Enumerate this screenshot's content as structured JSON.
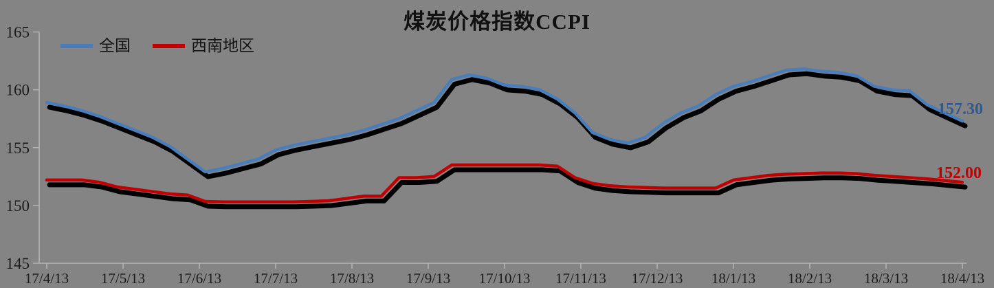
{
  "colors": {
    "background": "#848484",
    "axis": "#b5b5b5",
    "text": "#1c1c1c"
  },
  "chart_data": {
    "type": "line",
    "title": "煤炭价格指数CCPI",
    "xlabel": "",
    "ylabel": "",
    "ylim": [
      145,
      165
    ],
    "yticks": [
      165,
      160,
      155,
      150,
      145
    ],
    "grid": false,
    "legend_position": "top-left",
    "categories": [
      "17/4/13",
      "17/5/13",
      "17/6/13",
      "17/7/13",
      "17/8/13",
      "17/9/13",
      "17/10/13",
      "17/11/13",
      "17/12/13",
      "18/1/13",
      "18/2/13",
      "18/3/13",
      "18/4/13"
    ],
    "x_note": "weekly data points, monthly tick labels",
    "series": [
      {
        "name": "全国",
        "color": "#4A7EBB",
        "values": [
          158.9,
          158.6,
          158.2,
          157.7,
          157.1,
          156.5,
          155.9,
          155.1,
          154.0,
          152.9,
          153.2,
          153.6,
          154.0,
          154.8,
          155.2,
          155.5,
          155.8,
          156.1,
          156.5,
          157.0,
          157.5,
          158.2,
          158.9,
          160.9,
          161.3,
          161.0,
          160.4,
          160.3,
          160.0,
          159.2,
          158.0,
          156.3,
          155.7,
          155.4,
          155.9,
          157.1,
          158.0,
          158.6,
          159.6,
          160.3,
          160.7,
          161.2,
          161.7,
          161.8,
          161.6,
          161.5,
          161.2,
          160.3,
          160.0,
          159.9,
          158.7,
          158.0,
          157.3
        ]
      },
      {
        "name": "西南地区",
        "color": "#C00000",
        "values": [
          152.2,
          152.2,
          152.2,
          152.0,
          151.6,
          151.4,
          151.2,
          151.0,
          150.9,
          150.35,
          150.3,
          150.3,
          150.3,
          150.3,
          150.3,
          150.35,
          150.4,
          150.6,
          150.8,
          150.8,
          152.4,
          152.4,
          152.5,
          153.5,
          153.5,
          153.5,
          153.5,
          153.5,
          153.5,
          153.4,
          152.4,
          151.9,
          151.7,
          151.6,
          151.55,
          151.5,
          151.5,
          151.5,
          151.5,
          152.2,
          152.4,
          152.6,
          152.7,
          152.75,
          152.8,
          152.8,
          152.75,
          152.6,
          152.5,
          152.4,
          152.3,
          152.15,
          152.0
        ]
      }
    ],
    "end_labels": [
      {
        "text": "157.30",
        "color": "#31598C"
      },
      {
        "text": "152.00",
        "color": "#C00000"
      }
    ]
  }
}
